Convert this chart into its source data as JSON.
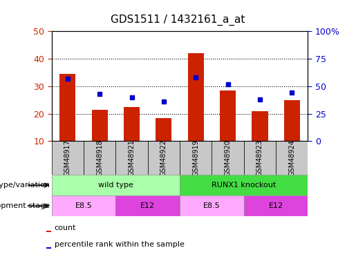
{
  "title": "GDS1511 / 1432161_a_at",
  "samples": [
    "GSM48917",
    "GSM48918",
    "GSM48921",
    "GSM48922",
    "GSM48919",
    "GSM48920",
    "GSM48923",
    "GSM48924"
  ],
  "counts": [
    34.5,
    21.5,
    22.5,
    18.5,
    42.0,
    28.5,
    21.0,
    25.0
  ],
  "pct_right_axis": [
    57,
    43,
    40,
    36,
    58,
    52,
    38,
    44
  ],
  "ylim_left": [
    10,
    50
  ],
  "ylim_right": [
    0,
    100
  ],
  "yticks_left": [
    10,
    20,
    30,
    40,
    50
  ],
  "yticks_right": [
    0,
    25,
    50,
    75,
    100
  ],
  "ytick_labels_right": [
    "0",
    "25",
    "50",
    "75",
    "100%"
  ],
  "bar_color": "#cc2200",
  "percentile_color": "#0000cc",
  "plot_bg_color": "#ffffff",
  "sample_box_color": "#c8c8c8",
  "genotype_groups": [
    {
      "label": "wild type",
      "start": 0,
      "end": 4,
      "color": "#aaffaa"
    },
    {
      "label": "RUNX1 knockout",
      "start": 4,
      "end": 8,
      "color": "#44dd44"
    }
  ],
  "stage_groups": [
    {
      "label": "E8.5",
      "start": 0,
      "end": 2,
      "color": "#ffaaff"
    },
    {
      "label": "E12",
      "start": 2,
      "end": 4,
      "color": "#dd44dd"
    },
    {
      "label": "E8.5",
      "start": 4,
      "end": 6,
      "color": "#ffaaff"
    },
    {
      "label": "E12",
      "start": 6,
      "end": 8,
      "color": "#dd44dd"
    }
  ],
  "legend_items": [
    {
      "label": "count",
      "color": "#cc2200"
    },
    {
      "label": "percentile rank within the sample",
      "color": "#0000cc"
    }
  ],
  "left_labels": [
    "genotype/variation",
    "development stage"
  ],
  "bar_width": 0.5
}
